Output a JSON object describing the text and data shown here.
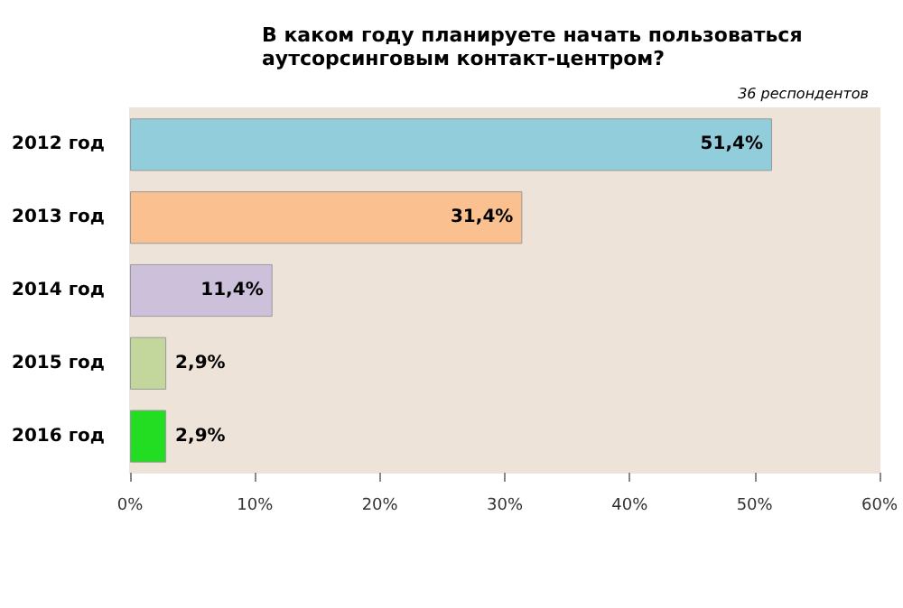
{
  "chart_data": {
    "type": "bar",
    "orientation": "horizontal",
    "title": "В каком году планируете начать пользоваться\nаутсорсинговым контакт-центром?",
    "subtitle": "36 респондентов",
    "categories": [
      "2012 год",
      "2013 год",
      "2014 год",
      "2015 год",
      "2016 год"
    ],
    "values": [
      51.4,
      31.4,
      11.4,
      2.9,
      2.9
    ],
    "colors": [
      "#92cddc",
      "#fac090",
      "#ccc0da",
      "#c3d69b",
      "#22dd22"
    ],
    "value_labels": [
      "51,4%",
      "31,4%",
      "11,4%",
      "2,9%",
      "2,9%"
    ],
    "xlim": [
      0,
      60
    ],
    "xticks": [
      {
        "value": 0,
        "label": "0%"
      },
      {
        "value": 10,
        "label": "10%"
      },
      {
        "value": 20,
        "label": "20%"
      },
      {
        "value": 30,
        "label": "30%"
      },
      {
        "value": 40,
        "label": "40%"
      },
      {
        "value": 50,
        "label": "50%"
      },
      {
        "value": 60,
        "label": "60%"
      }
    ],
    "grid": false
  }
}
